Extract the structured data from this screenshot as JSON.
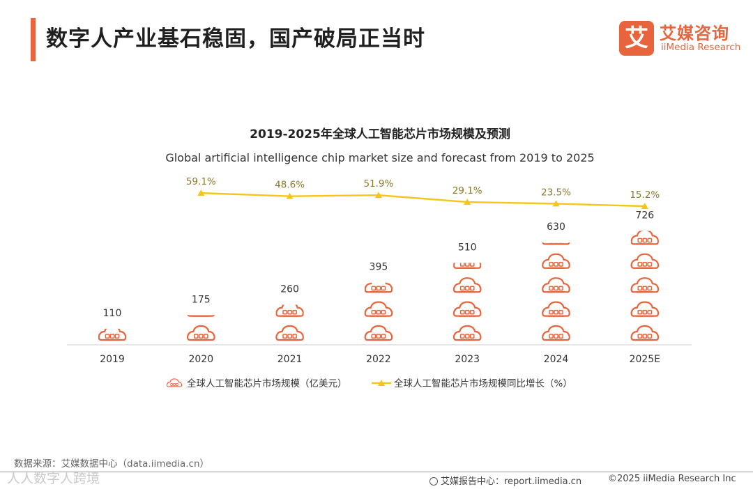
{
  "header": {
    "title": "数字人产业基石稳固，国产破局正当时",
    "logo_mark": "艾",
    "logo_cn": "艾媒咨询",
    "logo_en": "iiMedia Research"
  },
  "colors": {
    "accent": "#e8643c",
    "line": "#f5c518",
    "growth_label": "#8a7a2a"
  },
  "chart_data": {
    "type": "bar",
    "title": "2019-2025年全球人工智能芯片市场规模及预测",
    "subtitle": "Global artificial intelligence chip market size and forecast from 2019 to 2025",
    "categories": [
      "2019",
      "2020",
      "2021",
      "2022",
      "2023",
      "2024",
      "2025E"
    ],
    "series": [
      {
        "name": "全球人工智能芯片市场规模（亿美元）",
        "kind": "pictogram-bar",
        "icon": "cloud-chip-icon",
        "values": [
          110,
          175,
          260,
          395,
          510,
          630,
          726
        ]
      },
      {
        "name": "全球人工智能芯片市场规模同比增长（%）",
        "kind": "line",
        "marker": "triangle",
        "values": [
          null,
          59.1,
          48.6,
          51.9,
          29.1,
          23.5,
          15.2
        ],
        "labels": [
          "",
          "59.1%",
          "48.6%",
          "51.9%",
          "29.1%",
          "23.5%",
          "15.2%"
        ]
      }
    ],
    "value_labels": [
      "110",
      "175",
      "260",
      "395",
      "510",
      "630",
      "726"
    ],
    "ylim": [
      0,
      750
    ],
    "grid": false,
    "legend_position": "bottom"
  },
  "footer": {
    "source": "数据来源：艾媒数据中心（data.iimedia.cn）",
    "watermark": "人人数字人跨境",
    "report_site": "艾媒报告中心：report.iimedia.cn",
    "copyright": "©2025  iiMedia Research  Inc"
  }
}
